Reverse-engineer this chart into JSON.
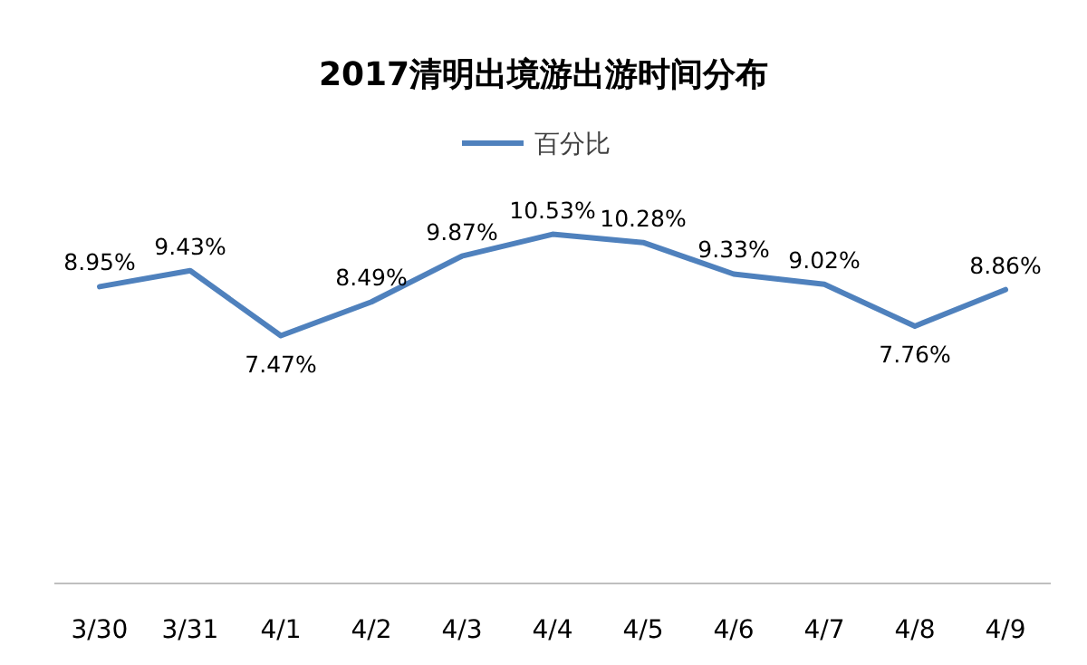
{
  "chart_data": {
    "type": "line",
    "title": "2017清明出境游出游时间分布",
    "categories": [
      "3/30",
      "3/31",
      "4/1",
      "4/2",
      "4/3",
      "4/4",
      "4/5",
      "4/6",
      "4/7",
      "4/8",
      "4/9"
    ],
    "series": [
      {
        "name": "百分比",
        "color": "#4f81bd",
        "values": [
          8.95,
          9.43,
          7.47,
          8.49,
          9.87,
          10.53,
          10.28,
          9.33,
          9.02,
          7.76,
          8.86
        ],
        "value_labels": [
          "8.95%",
          "9.43%",
          "7.47%",
          "8.49%",
          "9.87%",
          "10.53%",
          "10.28%",
          "9.33%",
          "9.02%",
          "7.76%",
          "8.86%"
        ]
      }
    ],
    "legend": "top",
    "marker": "none",
    "line_style": "solid"
  }
}
